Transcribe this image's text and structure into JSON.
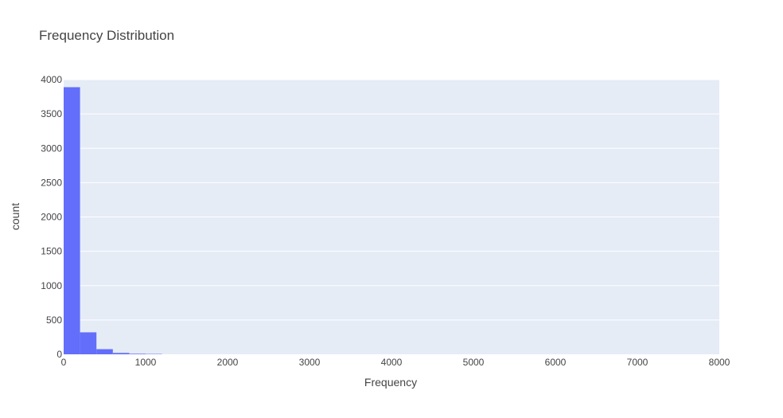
{
  "chart_data": {
    "type": "bar",
    "title": "Frequency Distribution",
    "xlabel": "Frequency",
    "ylabel": "count",
    "xlim": [
      0,
      8000
    ],
    "ylim": [
      0,
      4000
    ],
    "x_ticks": [
      0,
      1000,
      2000,
      3000,
      4000,
      5000,
      6000,
      7000,
      8000
    ],
    "x_tick_labels": [
      "0",
      "1000",
      "2000",
      "3000",
      "4000",
      "5000",
      "6000",
      "7000",
      "8000"
    ],
    "y_ticks": [
      0,
      500,
      1000,
      1500,
      2000,
      2500,
      3000,
      3500,
      4000
    ],
    "y_tick_labels": [
      "0",
      "500",
      "1000",
      "1500",
      "2000",
      "2500",
      "3000",
      "3500",
      "4000"
    ],
    "bins": [
      {
        "start": 0,
        "end": 200,
        "count": 3890
      },
      {
        "start": 200,
        "end": 400,
        "count": 320
      },
      {
        "start": 400,
        "end": 600,
        "count": 75
      },
      {
        "start": 600,
        "end": 800,
        "count": 20
      },
      {
        "start": 800,
        "end": 1000,
        "count": 8
      },
      {
        "start": 1000,
        "end": 1200,
        "count": 5
      }
    ],
    "grid": true,
    "colors": {
      "bar": "#636efa",
      "plot_bg": "#e5ecf6",
      "grid": "#ffffff",
      "text": "#444444"
    }
  }
}
